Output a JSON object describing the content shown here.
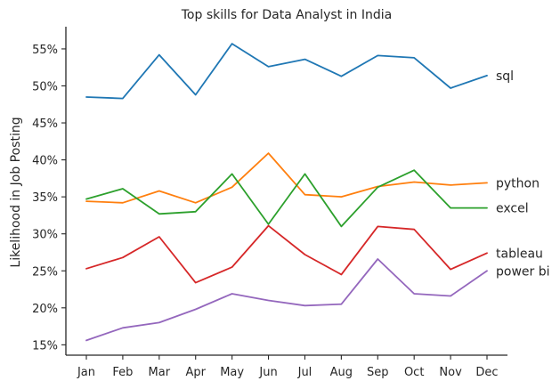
{
  "chart_data": {
    "type": "line",
    "title": "Top skills for Data Analyst in India",
    "xlabel": "",
    "ylabel": "Likelihood in Job Posting",
    "categories": [
      "Jan",
      "Feb",
      "Mar",
      "Apr",
      "May",
      "Jun",
      "Jul",
      "Aug",
      "Sep",
      "Oct",
      "Nov",
      "Dec"
    ],
    "ylim": [
      13.6,
      58.0
    ],
    "yticks": [
      15,
      20,
      25,
      30,
      35,
      40,
      45,
      50,
      55
    ],
    "ytick_labels": [
      "15%",
      "20%",
      "25%",
      "30%",
      "35%",
      "40%",
      "45%",
      "50%",
      "55%"
    ],
    "y_unit": "%",
    "grid": false,
    "legend": "none",
    "series": [
      {
        "name": "sql",
        "color": "#1f77b4",
        "values": [
          48.5,
          48.3,
          54.2,
          48.8,
          55.7,
          52.6,
          53.6,
          51.3,
          54.1,
          53.8,
          49.7,
          51.4
        ]
      },
      {
        "name": "python",
        "color": "#ff7f0e",
        "values": [
          34.4,
          34.2,
          35.8,
          34.2,
          36.3,
          40.9,
          35.3,
          35.0,
          36.4,
          37.0,
          36.6,
          36.9
        ]
      },
      {
        "name": "excel",
        "color": "#2ca02c",
        "values": [
          34.7,
          36.1,
          32.7,
          33.0,
          38.1,
          31.3,
          38.1,
          31.0,
          36.3,
          38.6,
          33.5,
          33.5
        ]
      },
      {
        "name": "tableau",
        "color": "#d62728",
        "values": [
          25.3,
          26.8,
          29.6,
          23.4,
          25.5,
          31.1,
          27.2,
          24.5,
          31.0,
          30.6,
          25.2,
          27.4
        ]
      },
      {
        "name": "power bi",
        "color": "#9467bd",
        "values": [
          15.6,
          17.3,
          18.0,
          19.8,
          21.9,
          21.0,
          20.3,
          20.5,
          26.6,
          21.9,
          21.6,
          25.0
        ]
      }
    ]
  }
}
